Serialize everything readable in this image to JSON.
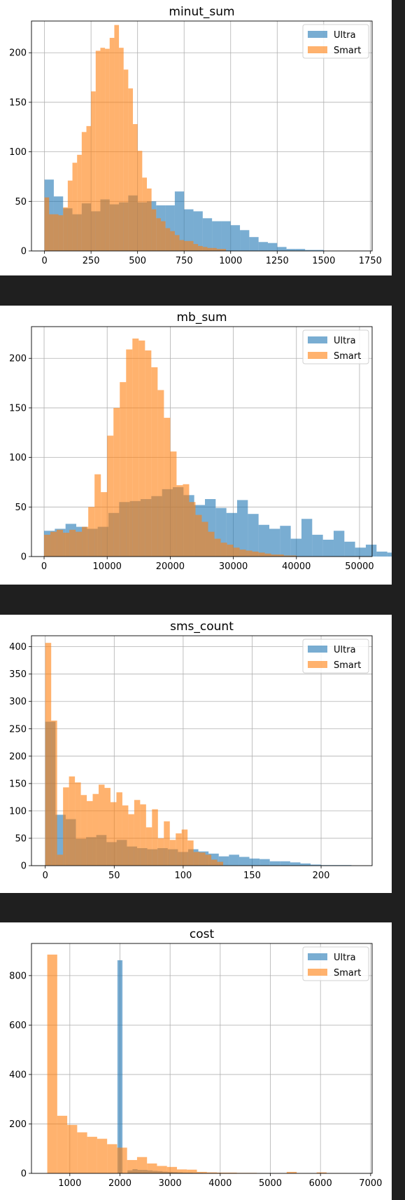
{
  "chart_data": [
    {
      "type": "bar",
      "title": "minut_sum",
      "xlim": [
        -70,
        1760
      ],
      "ylim": [
        0,
        232
      ],
      "xticks": [
        0,
        250,
        500,
        750,
        1000,
        1250,
        1500,
        1750
      ],
      "yticks": [
        0,
        50,
        100,
        150,
        200
      ],
      "legend": "top-right",
      "colors": {
        "Ultra": "#1f77b4",
        "Smart": "#ff7f0e"
      },
      "series": [
        {
          "name": "Ultra",
          "bin_start": 0,
          "bin_width": 50,
          "values": [
            72,
            55,
            43,
            37,
            48,
            40,
            52,
            47,
            49,
            56,
            49,
            50,
            46,
            46,
            60,
            42,
            40,
            33,
            30,
            30,
            26,
            21,
            14,
            9,
            8,
            4,
            2,
            2,
            1,
            1
          ]
        },
        {
          "name": "Smart",
          "bin_start": 0,
          "bin_width": 25,
          "values": [
            54,
            37,
            37,
            36,
            44,
            71,
            89,
            97,
            120,
            126,
            161,
            202,
            205,
            204,
            215,
            228,
            205,
            183,
            164,
            128,
            101,
            74,
            63,
            42,
            33,
            30,
            23,
            20,
            16,
            11,
            10,
            10,
            7,
            5,
            4,
            3,
            3,
            2,
            2
          ]
        }
      ]
    },
    {
      "type": "bar",
      "title": "mb_sum",
      "xlim": [
        -2000,
        52000
      ],
      "ylim": [
        0,
        232
      ],
      "xticks": [
        0,
        10000,
        20000,
        30000,
        40000,
        50000
      ],
      "yticks": [
        0,
        50,
        100,
        150,
        200
      ],
      "legend": "top-right",
      "colors": {
        "Ultra": "#1f77b4",
        "Smart": "#ff7f0e"
      },
      "series": [
        {
          "name": "Ultra",
          "bin_start": 0,
          "bin_width": 1700,
          "values": [
            26,
            28,
            33,
            30,
            28,
            30,
            44,
            55,
            56,
            58,
            61,
            68,
            70,
            62,
            52,
            58,
            49,
            44,
            57,
            43,
            32,
            28,
            31,
            18,
            38,
            22,
            17,
            26,
            15,
            9,
            12,
            5,
            4,
            3,
            4,
            2,
            2,
            1,
            0,
            0
          ]
        },
        {
          "name": "Smart",
          "bin_start": 0,
          "bin_width": 1000,
          "values": [
            22,
            25,
            27,
            24,
            27,
            25,
            30,
            50,
            83,
            65,
            122,
            150,
            176,
            209,
            220,
            218,
            208,
            191,
            168,
            140,
            106,
            72,
            73,
            55,
            42,
            35,
            25,
            18,
            14,
            12,
            9,
            7,
            6,
            5,
            4,
            3,
            2,
            2,
            1,
            1
          ]
        }
      ]
    },
    {
      "type": "bar",
      "title": "sms_count",
      "xlim": [
        -10,
        237
      ],
      "ylim": [
        0,
        420
      ],
      "xticks": [
        0,
        50,
        100,
        150,
        200
      ],
      "yticks": [
        0,
        50,
        100,
        150,
        200,
        250,
        300,
        350,
        400
      ],
      "legend": "top-right",
      "colors": {
        "Ultra": "#1f77b4",
        "Smart": "#ff7f0e"
      },
      "series": [
        {
          "name": "Ultra",
          "bin_start": 0,
          "bin_width": 7.4,
          "values": [
            263,
            93,
            85,
            49,
            52,
            56,
            43,
            47,
            35,
            32,
            30,
            32,
            30,
            25,
            30,
            26,
            22,
            17,
            20,
            16,
            13,
            12,
            8,
            8,
            6,
            4,
            2,
            1,
            1,
            1
          ]
        },
        {
          "name": "Smart",
          "bin_start": 0,
          "bin_width": 4.3,
          "values": [
            407,
            265,
            20,
            143,
            163,
            152,
            129,
            118,
            131,
            148,
            142,
            116,
            134,
            110,
            94,
            120,
            112,
            70,
            103,
            50,
            81,
            47,
            59,
            66,
            46,
            25,
            24,
            20,
            11,
            7
          ]
        }
      ]
    },
    {
      "type": "bar",
      "title": "cost",
      "xlim": [
        235,
        7030
      ],
      "ylim": [
        0,
        930
      ],
      "xticks": [
        1000,
        2000,
        3000,
        4000,
        5000,
        6000,
        7000
      ],
      "yticks": [
        0,
        200,
        400,
        600,
        800
      ],
      "legend": "top-right",
      "colors": {
        "Ultra": "#1f77b4",
        "Smart": "#ff7f0e"
      },
      "series": [
        {
          "name": "Ultra",
          "bin_start": 1950,
          "bin_width": 100,
          "values": [
            862,
            0,
            12,
            17,
            14,
            14,
            12,
            10,
            9,
            7,
            6,
            5,
            4,
            3,
            3,
            2,
            2,
            1,
            1,
            1,
            1
          ]
        },
        {
          "name": "Smart",
          "bin_start": 550,
          "bin_width": 199,
          "values": [
            885,
            233,
            196,
            166,
            148,
            140,
            118,
            104,
            54,
            66,
            40,
            30,
            26,
            16,
            15,
            6,
            4,
            3,
            3,
            2,
            2,
            1,
            1,
            1,
            6,
            1,
            1,
            4,
            1,
            1
          ]
        }
      ]
    }
  ]
}
